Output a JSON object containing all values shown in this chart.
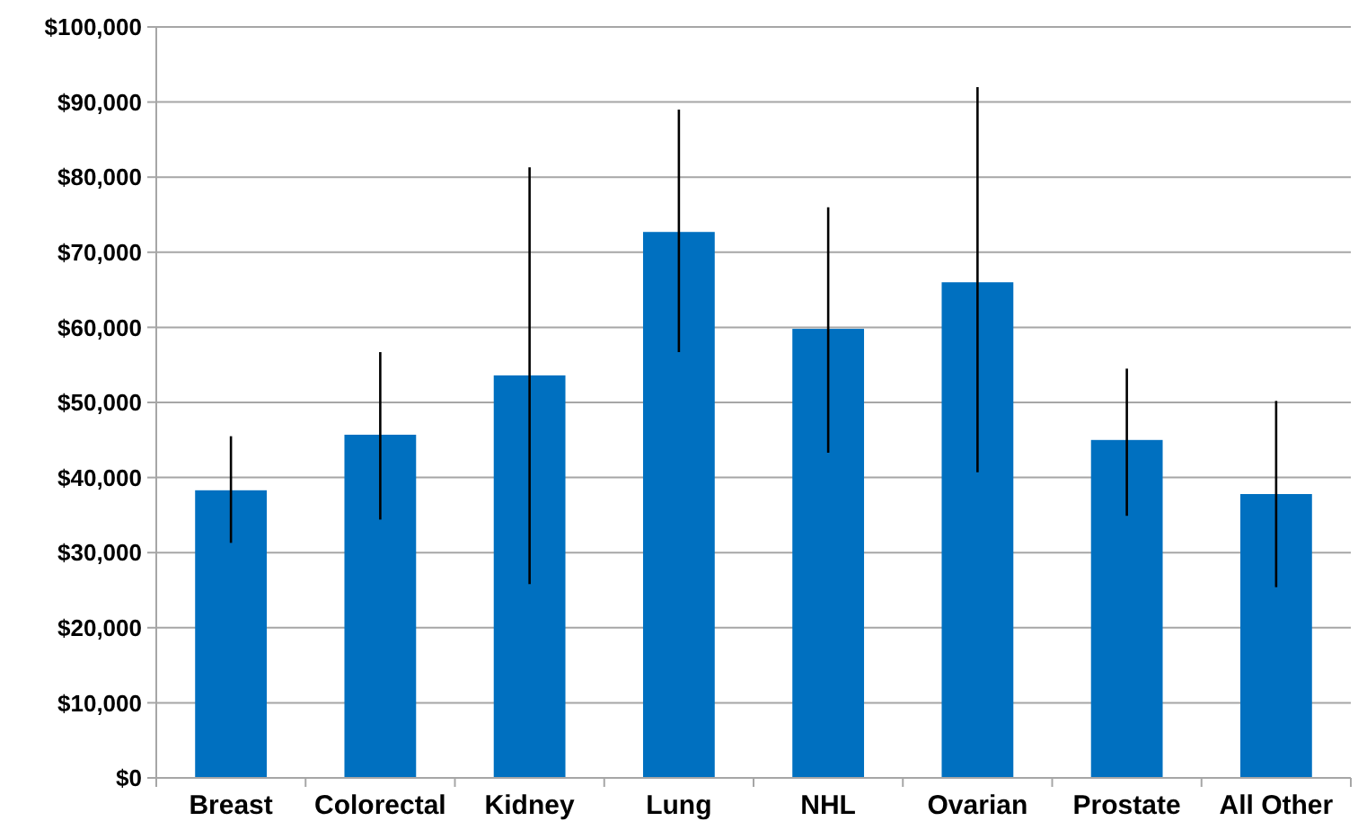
{
  "chart_data": {
    "type": "bar",
    "categories": [
      "Breast",
      "Colorectal",
      "Kidney",
      "Lung",
      "NHL",
      "Ovarian",
      "Prostate",
      "All Other"
    ],
    "values": [
      38300,
      45700,
      53600,
      72700,
      59800,
      66000,
      45000,
      37800
    ],
    "errors": [
      [
        31300,
        45500
      ],
      [
        34400,
        56700
      ],
      [
        25800,
        81300
      ],
      [
        56700,
        89000
      ],
      [
        43300,
        76000
      ],
      [
        40700,
        92000
      ],
      [
        34900,
        54500
      ],
      [
        25400,
        50200
      ]
    ],
    "color": "#0070c0",
    "ylim": [
      0,
      100000
    ],
    "yticks": [
      {
        "value": 0,
        "label": "$0"
      },
      {
        "value": 10000,
        "label": "$10,000"
      },
      {
        "value": 20000,
        "label": "$20,000"
      },
      {
        "value": 30000,
        "label": "$30,000"
      },
      {
        "value": 40000,
        "label": "$40,000"
      },
      {
        "value": 50000,
        "label": "$50,000"
      },
      {
        "value": 60000,
        "label": "$60,000"
      },
      {
        "value": 70000,
        "label": "$70,000"
      },
      {
        "value": 80000,
        "label": "$80,000"
      },
      {
        "value": 90000,
        "label": "$90,000"
      },
      {
        "value": 100000,
        "label": "$100,000"
      }
    ],
    "grid": "y"
  }
}
